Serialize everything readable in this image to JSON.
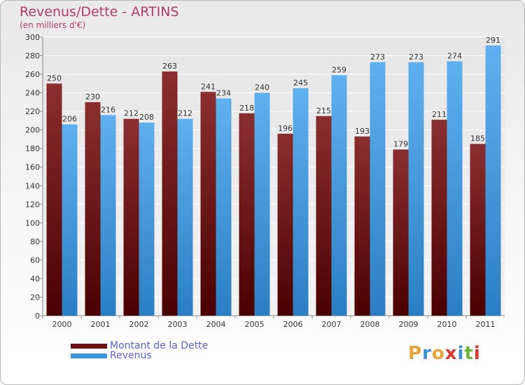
{
  "header": {
    "title": "Revenus/Dette - ARTINS",
    "subtitle": "(en milliers d'€)"
  },
  "colors": {
    "dette": "#7b1f1f",
    "revenus": "#3a96dd",
    "title": "#b43a6c",
    "legend_text": "#5b63c9"
  },
  "legend": [
    {
      "label": "Montant de la Dette",
      "color": "#6b1010"
    },
    {
      "label": "Revenus",
      "color": "#3a96dd"
    }
  ],
  "logo": {
    "text": "Proxiti",
    "letters": [
      "P",
      "r",
      "o",
      "x",
      "i",
      "t",
      "i"
    ],
    "letter_colors": [
      "#e7a33b",
      "#3a8fd6",
      "#e7a33b",
      "#d9382e",
      "#3a8fd6",
      "#6fb33a",
      "#d9382e"
    ]
  },
  "chart_data": {
    "type": "bar",
    "categories": [
      "2000",
      "2001",
      "2002",
      "2003",
      "2004",
      "2005",
      "2006",
      "2007",
      "2008",
      "2009",
      "2010",
      "2011"
    ],
    "series": [
      {
        "name": "Montant de la Dette",
        "values": [
          250,
          230,
          212,
          263,
          241,
          218,
          196,
          215,
          193,
          179,
          211,
          185
        ]
      },
      {
        "name": "Revenus",
        "values": [
          206,
          216,
          208,
          212,
          234,
          240,
          245,
          259,
          273,
          273,
          274,
          291
        ]
      }
    ],
    "ylim": [
      0,
      300
    ],
    "yticks": [
      0,
      20,
      40,
      60,
      80,
      100,
      120,
      140,
      160,
      180,
      200,
      220,
      240,
      260,
      280,
      300
    ],
    "grid": true,
    "legend_position": "bottom-left"
  }
}
